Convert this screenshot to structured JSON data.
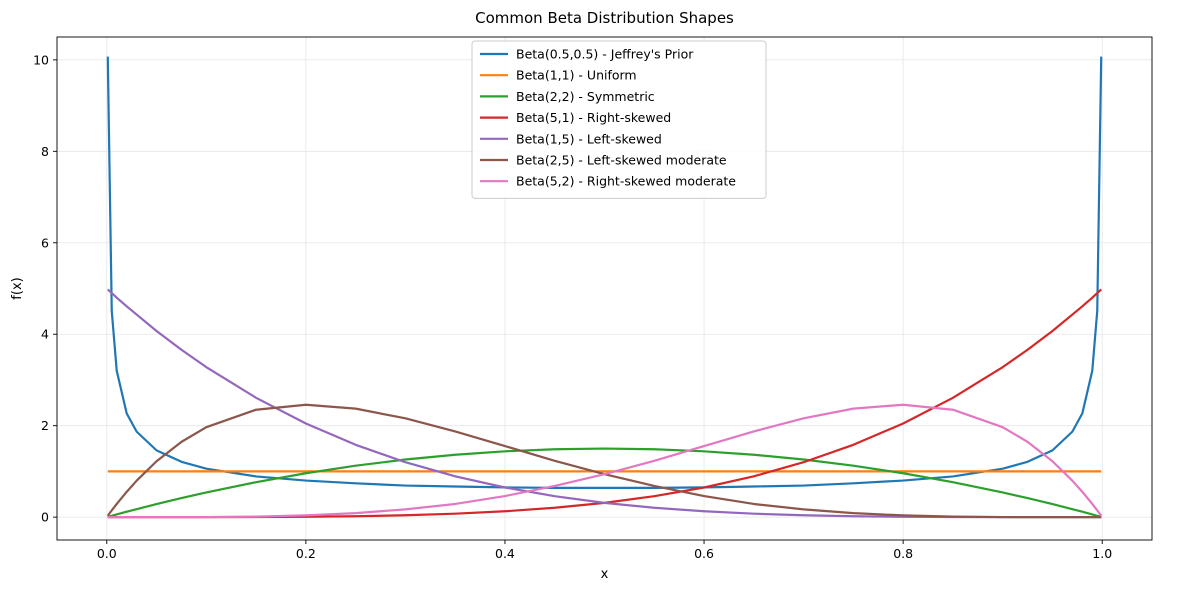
{
  "chart_data": {
    "type": "line",
    "title": "Common Beta Distribution Shapes",
    "xlabel": "x",
    "ylabel": "f(x)",
    "xlim": [
      -0.05,
      1.05
    ],
    "ylim": [
      -0.5,
      10.5
    ],
    "xticks": [
      0.0,
      0.2,
      0.4,
      0.6,
      0.8,
      1.0
    ],
    "xtick_labels": [
      "0.0",
      "0.2",
      "0.4",
      "0.6",
      "0.8",
      "1.0"
    ],
    "yticks": [
      0,
      2,
      4,
      6,
      8,
      10
    ],
    "ytick_labels": [
      "0",
      "2",
      "4",
      "6",
      "8",
      "10"
    ],
    "grid": true,
    "legend_position": "upper center",
    "x": [
      0.001,
      0.005,
      0.01,
      0.02,
      0.03,
      0.05,
      0.075,
      0.1,
      0.15,
      0.2,
      0.25,
      0.3,
      0.35,
      0.4,
      0.45,
      0.5,
      0.55,
      0.6,
      0.65,
      0.7,
      0.75,
      0.8,
      0.85,
      0.9,
      0.925,
      0.95,
      0.97,
      0.98,
      0.99,
      0.995,
      0.999
    ],
    "series": [
      {
        "name": "Beta(0.5,0.5) - Jeffrey's Prior",
        "color": "#1f77b4",
        "values": [
          10.07,
          4.51,
          3.2,
          2.27,
          1.87,
          1.46,
          1.21,
          1.06,
          0.89,
          0.8,
          0.74,
          0.69,
          0.67,
          0.65,
          0.64,
          0.64,
          0.64,
          0.65,
          0.67,
          0.69,
          0.74,
          0.8,
          0.89,
          1.06,
          1.21,
          1.46,
          1.87,
          2.27,
          3.2,
          4.51,
          10.07
        ]
      },
      {
        "name": "Beta(1,1) - Uniform",
        "color": "#ff7f0e",
        "values": [
          1,
          1,
          1,
          1,
          1,
          1,
          1,
          1,
          1,
          1,
          1,
          1,
          1,
          1,
          1,
          1,
          1,
          1,
          1,
          1,
          1,
          1,
          1,
          1,
          1,
          1,
          1,
          1,
          1,
          1,
          1
        ]
      },
      {
        "name": "Beta(2,2) - Symmetric",
        "color": "#2ca02c",
        "values": [
          0.006,
          0.03,
          0.059,
          0.118,
          0.175,
          0.285,
          0.416,
          0.54,
          0.765,
          0.96,
          1.125,
          1.26,
          1.365,
          1.44,
          1.485,
          1.5,
          1.485,
          1.44,
          1.365,
          1.26,
          1.125,
          0.96,
          0.765,
          0.54,
          0.416,
          0.285,
          0.175,
          0.118,
          0.059,
          0.03,
          0.006
        ]
      },
      {
        "name": "Beta(5,1) - Right-skewed",
        "color": "#d62728",
        "values": [
          0,
          0,
          0,
          0,
          0,
          0,
          0,
          0.0005,
          0.0025,
          0.008,
          0.0195,
          0.0405,
          0.075,
          0.128,
          0.205,
          0.3125,
          0.4575,
          0.648,
          0.8925,
          1.2005,
          1.582,
          2.048,
          2.61,
          3.2805,
          3.66,
          4.07,
          4.43,
          4.61,
          4.8,
          4.9,
          4.98
        ]
      },
      {
        "name": "Beta(1,5) - Left-skewed",
        "color": "#9467bd",
        "values": [
          4.98,
          4.9,
          4.8,
          4.61,
          4.43,
          4.07,
          3.66,
          3.2805,
          2.61,
          2.048,
          1.582,
          1.2005,
          0.8925,
          0.648,
          0.4575,
          0.3125,
          0.205,
          0.128,
          0.075,
          0.0405,
          0.0195,
          0.008,
          0.0025,
          0.0005,
          0,
          0,
          0,
          0,
          0,
          0,
          0
        ]
      },
      {
        "name": "Beta(2,5) - Left-skewed moderate",
        "color": "#8c564b",
        "values": [
          0.03,
          0.148,
          0.288,
          0.553,
          0.797,
          1.222,
          1.646,
          1.968,
          2.349,
          2.458,
          2.373,
          2.161,
          1.875,
          1.555,
          1.231,
          0.938,
          0.683,
          0.461,
          0.288,
          0.17,
          0.088,
          0.038,
          0.012,
          0.0015,
          0,
          0,
          0,
          0,
          0,
          0,
          0
        ]
      },
      {
        "name": "Beta(5,2) - Right-skewed moderate",
        "color": "#e377c2",
        "values": [
          0,
          0,
          0,
          0,
          0,
          0,
          0,
          0.0015,
          0.012,
          0.038,
          0.088,
          0.17,
          0.288,
          0.461,
          0.683,
          0.938,
          1.231,
          1.555,
          1.875,
          2.161,
          2.373,
          2.458,
          2.349,
          1.968,
          1.646,
          1.222,
          0.797,
          0.553,
          0.288,
          0.148,
          0.03
        ]
      }
    ]
  }
}
